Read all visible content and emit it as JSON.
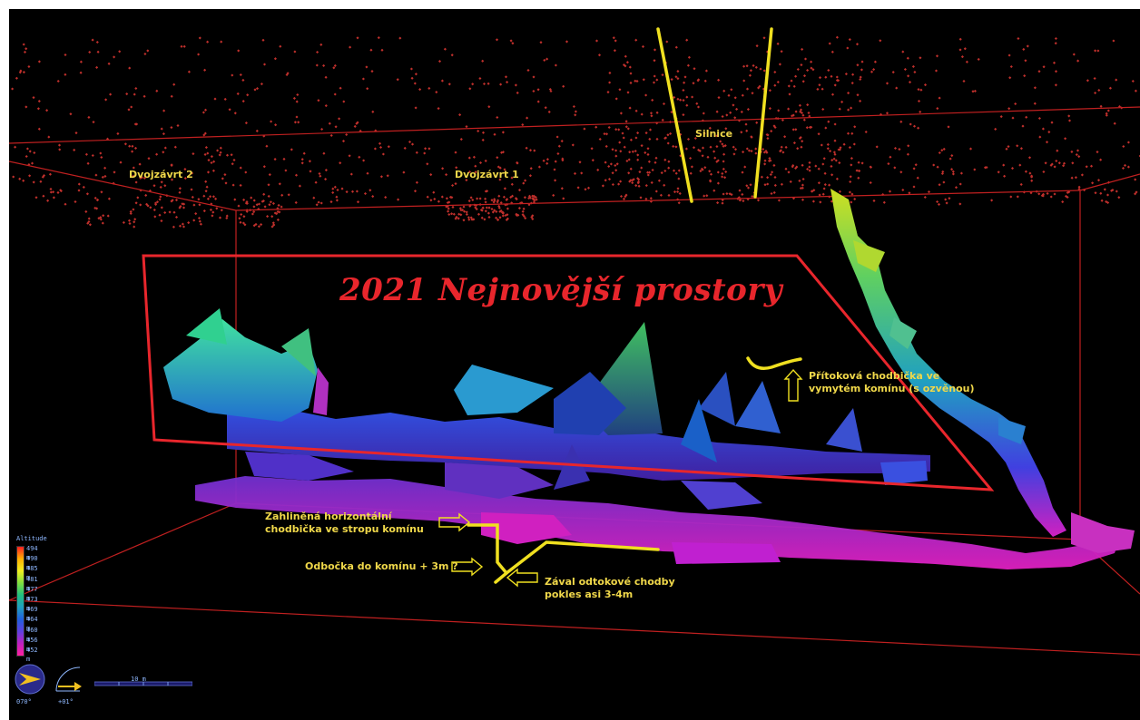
{
  "title": "2021 Nejnovější prostory",
  "labels": {
    "dvojzavrt2": "Dvojzávrt 2",
    "dvojzavrt1": "Dvojzávrt 1",
    "silnice": "Silnice",
    "pritokova": "Přítoková chodbička ve\nvymytém komínu (s ozvěnou)",
    "zahlinena": "Zahliněná horizontální\nchodbička ve stropu komínu",
    "odbocka": "Odbočka do komínu + 3m ?",
    "zaval": "Zával odtokové chodby\npokles asi 3-4m"
  },
  "legend": {
    "title": "Altitude",
    "ticks": [
      "494 m",
      "490 m",
      "485 m",
      "481 m",
      "477 m",
      "473 m",
      "469 m",
      "464 m",
      "460 m",
      "456 m",
      "452 m"
    ]
  },
  "compass": {
    "heading": "070°",
    "icon": "compass-icon"
  },
  "inclination": {
    "value": "+01°",
    "icon": "inclination-icon"
  },
  "scale": {
    "label": "10 m"
  },
  "colors": {
    "background": "#000000",
    "surface_points": "#c0302c",
    "frame_red": "#e8262c",
    "annotation_yellow": "#f0e020",
    "label_text": "#f0d84a",
    "instrument_blue": "#8fb8ff"
  }
}
